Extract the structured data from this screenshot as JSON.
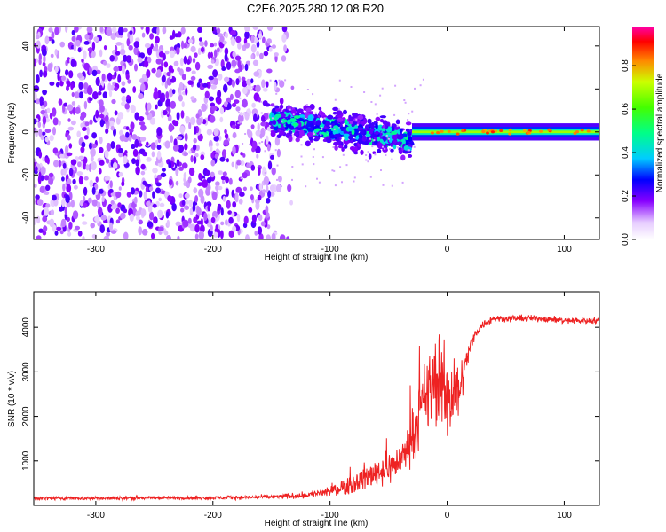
{
  "title": "C2E6.2025.280.12.08.R20",
  "colors": {
    "snr_line": "#ee2222",
    "spectrum_main": "#6a00e8",
    "axis": "#000000"
  },
  "chart_data": [
    {
      "type": "heatmap",
      "name": "spectrogram",
      "xlabel": "Height of straight line (km)",
      "ylabel": "Frequency (Hz)",
      "xlim": [
        -353,
        130
      ],
      "ylim": [
        -50,
        49
      ],
      "xticks": [
        -300,
        -200,
        -100,
        0,
        100
      ],
      "yticks": [
        -40,
        -20,
        0,
        20,
        40
      ],
      "description_series": [
        {
          "name": "noise region",
          "x_range": [
            -353,
            -140
          ],
          "y_range": [
            -50,
            49
          ],
          "amplitude": 0.2
        },
        {
          "name": "transition",
          "x_range": [
            -150,
            -30
          ],
          "center_hz_start": 6,
          "center_hz_end": -4,
          "width_hz": 12,
          "amplitude": 0.45
        },
        {
          "name": "carrier line",
          "x_range": [
            -30,
            130
          ],
          "center_hz": 0,
          "width_hz": 4,
          "amplitude": 0.7
        }
      ],
      "colorbar": {
        "label": "Normalized spectral amplitude",
        "range": [
          0.0,
          0.98
        ],
        "ticks": [
          0.0,
          0.2,
          0.4,
          0.6,
          0.8
        ],
        "tick_labels": [
          "0.0",
          "0.2",
          "0.4",
          "0.6",
          "0.8"
        ]
      }
    },
    {
      "type": "line",
      "name": "snr",
      "xlabel": "Height of straight line (km)",
      "ylabel": "SNR (10 * v/v)",
      "xlim": [
        -353,
        130
      ],
      "ylim": [
        0,
        4800
      ],
      "xticks": [
        -300,
        -200,
        -100,
        0,
        100
      ],
      "yticks": [
        1000,
        2000,
        3000,
        4000
      ],
      "series": [
        {
          "name": "SNR",
          "envelope_x": [
            -353,
            -300,
            -250,
            -200,
            -150,
            -120,
            -100,
            -80,
            -60,
            -45,
            -35,
            -25,
            -20,
            -15,
            -10,
            -5,
            0,
            5,
            10,
            15,
            20,
            25,
            30,
            40,
            60,
            80,
            100,
            130
          ],
          "envelope_y": [
            160,
            160,
            170,
            170,
            190,
            230,
            320,
            500,
            750,
            900,
            1200,
            1900,
            2300,
            2600,
            2800,
            2700,
            2400,
            2500,
            2600,
            3100,
            3600,
            3900,
            4050,
            4200,
            4200,
            4200,
            4150,
            4150
          ],
          "noise": [
            60,
            60,
            60,
            60,
            70,
            110,
            200,
            350,
            500,
            520,
            600,
            1000,
            1200,
            1400,
            1500,
            1500,
            1400,
            1200,
            1000,
            500,
            250,
            150,
            130,
            120,
            110,
            110,
            110,
            110
          ]
        }
      ]
    }
  ]
}
